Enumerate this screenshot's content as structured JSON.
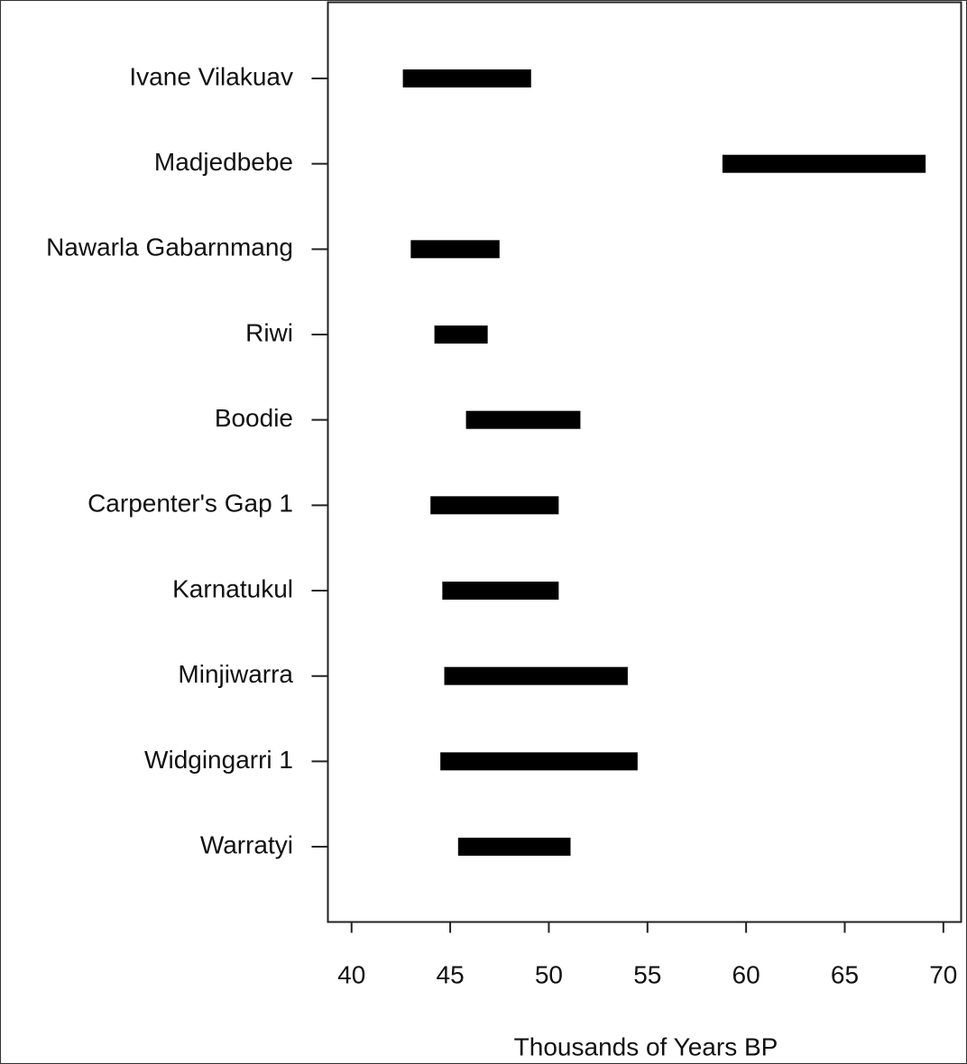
{
  "chart_data": {
    "type": "range",
    "xlabel": "Thousands of Years BP",
    "categories": [
      "Ivane Vilakuav",
      "Madjedbebe",
      "Nawarla Gabarnmang",
      "Riwi",
      "Boodie",
      "Carpenter's Gap 1",
      "Karnatukul",
      "Minjiwarra",
      "Widgingarri 1",
      "Warratyi"
    ],
    "low": [
      42.6,
      58.8,
      43.0,
      44.2,
      45.8,
      44.0,
      44.6,
      44.7,
      44.5,
      45.4
    ],
    "high": [
      49.1,
      69.1,
      47.5,
      46.9,
      51.6,
      50.5,
      50.5,
      54.0,
      54.5,
      51.1
    ],
    "color": "#000000",
    "xlim": [
      38.8,
      70.9
    ],
    "xticks": [
      40,
      45,
      50,
      55,
      60,
      65,
      70
    ]
  }
}
